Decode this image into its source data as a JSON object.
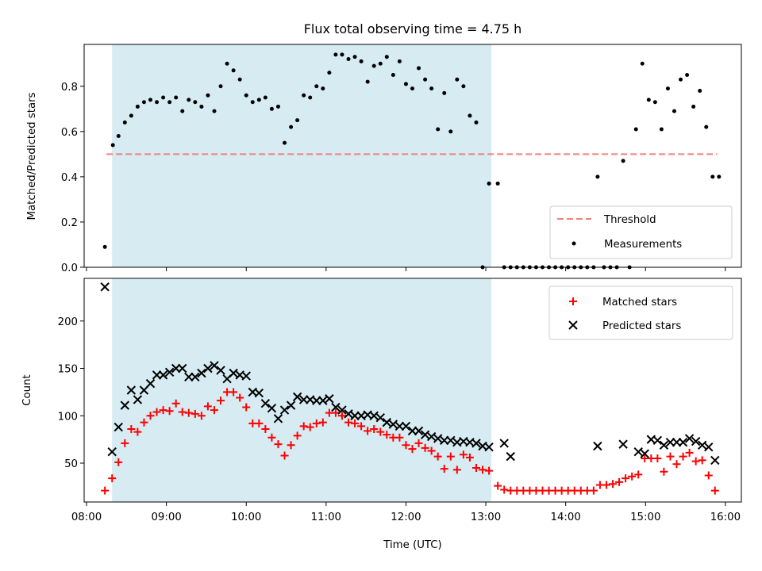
{
  "figure": {
    "title": "Flux total observing time = 4.75 h",
    "xlabel": "Time (UTC)"
  },
  "chart_data": [
    {
      "type": "scatter",
      "panel": "top",
      "ylabel": "Matched/Predicted stars",
      "x_unit": "hours UTC",
      "xlim": [
        7.97,
        16.2
      ],
      "ylim": [
        0.0,
        0.985
      ],
      "yticks": [
        "0.0",
        "0.2",
        "0.4",
        "0.6",
        "0.8"
      ],
      "ytick_values": [
        0.0,
        0.2,
        0.4,
        0.6,
        0.8
      ],
      "observing_window": [
        8.32,
        13.07
      ],
      "threshold": {
        "name": "Threshold",
        "value": 0.5,
        "x_range": [
          8.25,
          15.9
        ],
        "color": "#f08080"
      },
      "series": [
        {
          "name": "Measurements",
          "color": "#000000",
          "x": [
            8.23,
            8.33,
            8.4,
            8.48,
            8.56,
            8.64,
            8.72,
            8.8,
            8.88,
            8.96,
            9.04,
            9.12,
            9.2,
            9.28,
            9.36,
            9.44,
            9.52,
            9.6,
            9.68,
            9.76,
            9.84,
            9.92,
            10.0,
            10.08,
            10.16,
            10.24,
            10.32,
            10.4,
            10.48,
            10.56,
            10.64,
            10.72,
            10.8,
            10.88,
            10.96,
            11.04,
            11.12,
            11.2,
            11.28,
            11.36,
            11.44,
            11.52,
            11.6,
            11.68,
            11.76,
            11.84,
            11.92,
            12.0,
            12.08,
            12.16,
            12.24,
            12.32,
            12.4,
            12.48,
            12.56,
            12.64,
            12.72,
            12.8,
            12.88,
            12.96,
            13.04,
            13.15,
            13.23,
            13.31,
            13.39,
            13.47,
            13.55,
            13.63,
            13.71,
            13.79,
            13.87,
            13.95,
            14.03,
            14.11,
            14.19,
            14.27,
            14.35,
            14.4,
            14.48,
            14.56,
            14.64,
            14.72,
            14.8,
            14.88,
            14.96,
            15.04,
            15.12,
            15.2,
            15.28,
            15.36,
            15.44,
            15.52,
            15.6,
            15.68,
            15.76,
            15.84,
            15.92
          ],
          "y": [
            0.09,
            0.54,
            0.58,
            0.64,
            0.67,
            0.71,
            0.73,
            0.74,
            0.73,
            0.75,
            0.73,
            0.75,
            0.69,
            0.74,
            0.73,
            0.71,
            0.76,
            0.69,
            0.8,
            0.9,
            0.87,
            0.83,
            0.76,
            0.73,
            0.74,
            0.75,
            0.7,
            0.71,
            0.55,
            0.62,
            0.65,
            0.76,
            0.75,
            0.8,
            0.79,
            0.86,
            0.94,
            0.94,
            0.92,
            0.93,
            0.91,
            0.82,
            0.89,
            0.9,
            0.93,
            0.85,
            0.91,
            0.81,
            0.79,
            0.88,
            0.83,
            0.79,
            0.61,
            0.77,
            0.6,
            0.83,
            0.8,
            0.67,
            0.64,
            0.0,
            0.37,
            0.37,
            0.0,
            0.0,
            0.0,
            0.0,
            0.0,
            0.0,
            0.0,
            0.0,
            0.0,
            0.0,
            0.0,
            0.0,
            0.0,
            0.0,
            0.0,
            0.4,
            0.0,
            0.0,
            0.0,
            0.47,
            0.0,
            0.61,
            0.9,
            0.74,
            0.73,
            0.61,
            0.79,
            0.69,
            0.83,
            0.85,
            0.71,
            0.78,
            0.62,
            0.4,
            null
          ]
        }
      ]
    },
    {
      "type": "scatter",
      "panel": "bottom",
      "ylabel": "Count",
      "x_unit": "hours UTC",
      "xlim": [
        7.97,
        16.2
      ],
      "ylim": [
        9,
        245
      ],
      "yticks": [
        "50",
        "100",
        "150",
        "200"
      ],
      "ytick_values": [
        50,
        100,
        150,
        200
      ],
      "xticks": [
        "08:00",
        "09:00",
        "10:00",
        "11:00",
        "12:00",
        "13:00",
        "14:00",
        "15:00",
        "16:00"
      ],
      "xtick_values": [
        8,
        9,
        10,
        11,
        12,
        13,
        14,
        15,
        16
      ],
      "observing_window": [
        8.32,
        13.07
      ],
      "series": [
        {
          "name": "Matched stars",
          "color": "#ff0000",
          "marker": "plus",
          "x": [
            8.23,
            8.32,
            8.4,
            8.48,
            8.56,
            8.64,
            8.72,
            8.8,
            8.88,
            8.96,
            9.04,
            9.12,
            9.2,
            9.28,
            9.36,
            9.44,
            9.52,
            9.6,
            9.68,
            9.76,
            9.84,
            9.92,
            10.0,
            10.08,
            10.16,
            10.24,
            10.32,
            10.4,
            10.48,
            10.56,
            10.64,
            10.72,
            10.8,
            10.88,
            10.96,
            11.04,
            11.12,
            11.2,
            11.28,
            11.36,
            11.44,
            11.52,
            11.6,
            11.68,
            11.76,
            11.84,
            11.92,
            12.0,
            12.08,
            12.16,
            12.24,
            12.32,
            12.4,
            12.48,
            12.56,
            12.64,
            12.72,
            12.8,
            12.88,
            12.96,
            13.04,
            13.15,
            13.23,
            13.31,
            13.39,
            13.47,
            13.55,
            13.63,
            13.71,
            13.79,
            13.87,
            13.95,
            14.03,
            14.11,
            14.19,
            14.27,
            14.35,
            14.43,
            14.51,
            14.59,
            14.67,
            14.75,
            14.83,
            14.91,
            14.99,
            15.07,
            15.15,
            15.23,
            15.31,
            15.39,
            15.47,
            15.55,
            15.63,
            15.71,
            15.79,
            15.87
          ],
          "y": [
            21,
            34,
            51,
            71,
            86,
            83,
            93,
            100,
            104,
            106,
            105,
            113,
            104,
            103,
            102,
            100,
            110,
            106,
            116,
            125,
            125,
            119,
            109,
            92,
            92,
            86,
            77,
            70,
            58,
            69,
            79,
            89,
            88,
            92,
            93,
            103,
            103,
            100,
            93,
            92,
            89,
            84,
            86,
            83,
            80,
            77,
            77,
            69,
            65,
            71,
            66,
            63,
            57,
            44,
            57,
            43,
            59,
            56,
            45,
            43,
            42,
            26,
            22,
            21,
            21,
            21,
            21,
            21,
            21,
            21,
            21,
            21,
            21,
            21,
            21,
            21,
            21,
            27,
            27,
            28,
            30,
            34,
            36,
            38,
            55,
            55,
            55,
            41,
            57,
            49,
            57,
            61,
            52,
            53,
            37,
            21
          ]
        },
        {
          "name": "Predicted stars",
          "color": "#000000",
          "marker": "cross",
          "x": [
            8.23,
            8.32,
            8.4,
            8.48,
            8.56,
            8.64,
            8.72,
            8.8,
            8.88,
            8.96,
            9.04,
            9.12,
            9.2,
            9.28,
            9.36,
            9.44,
            9.52,
            9.6,
            9.68,
            9.76,
            9.84,
            9.92,
            10.0,
            10.08,
            10.16,
            10.24,
            10.32,
            10.4,
            10.48,
            10.56,
            10.64,
            10.72,
            10.8,
            10.88,
            10.96,
            11.04,
            11.12,
            11.2,
            11.28,
            11.36,
            11.44,
            11.52,
            11.6,
            11.68,
            11.76,
            11.84,
            11.92,
            12.0,
            12.08,
            12.16,
            12.24,
            12.32,
            12.4,
            12.48,
            12.56,
            12.64,
            12.72,
            12.8,
            12.88,
            12.96,
            13.04,
            13.23,
            13.31,
            14.4,
            14.72,
            14.91,
            14.99,
            15.07,
            15.15,
            15.23,
            15.31,
            15.39,
            15.47,
            15.55,
            15.63,
            15.71,
            15.79,
            15.87
          ],
          "y": [
            236,
            62,
            88,
            111,
            127,
            117,
            127,
            134,
            143,
            143,
            146,
            150,
            150,
            141,
            141,
            145,
            150,
            153,
            148,
            139,
            145,
            143,
            142,
            125,
            124,
            113,
            108,
            97,
            106,
            111,
            120,
            117,
            117,
            116,
            116,
            118,
            109,
            106,
            102,
            100,
            100,
            101,
            100,
            98,
            93,
            91,
            89,
            89,
            84,
            84,
            80,
            78,
            76,
            74,
            74,
            72,
            73,
            72,
            71,
            68,
            67,
            71,
            57,
            68,
            70,
            62,
            60,
            75,
            74,
            69,
            72,
            72,
            72,
            76,
            73,
            69,
            67,
            53
          ]
        }
      ]
    }
  ]
}
